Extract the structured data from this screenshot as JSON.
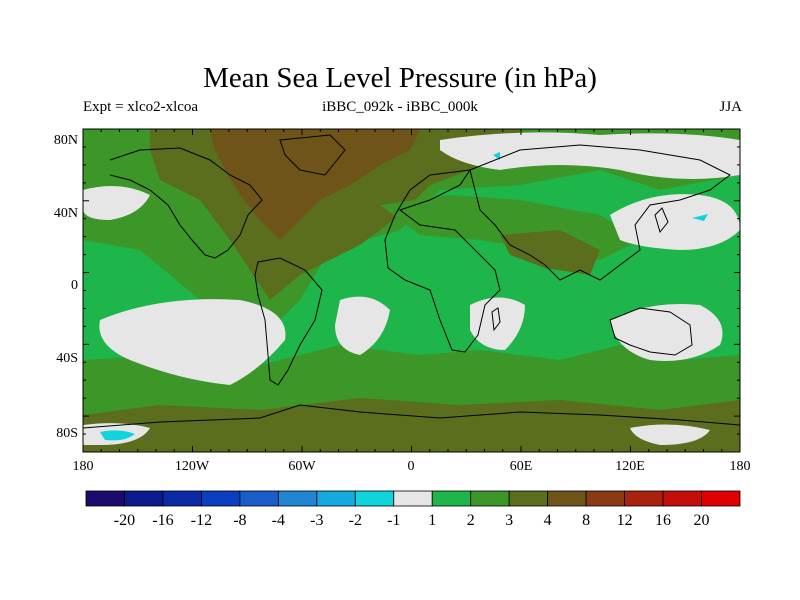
{
  "title": "Mean Sea Level Pressure (in hPa)",
  "subtitle_left": "Expt = xlco2-xlcoa",
  "subtitle_center": "iBBC_092k - iBBC_000k",
  "subtitle_right": "JJA",
  "lat_labels": [
    "80N",
    "40N",
    "0",
    "40S",
    "80S"
  ],
  "lon_labels": [
    "180",
    "120W",
    "60W",
    "0",
    "60E",
    "120E",
    "180"
  ],
  "colorbar": {
    "labels": [
      "-20",
      "-16",
      "-12",
      "-8",
      "-4",
      "-3",
      "-2",
      "-1",
      "1",
      "2",
      "3",
      "4",
      "8",
      "12",
      "16",
      "20"
    ],
    "colors": [
      "#1a0b6e",
      "#0b1a8c",
      "#0a2aa6",
      "#0c3fbf",
      "#1a5cc9",
      "#2086d4",
      "#14a9e0",
      "#10d4dc",
      "#e6e6e6",
      "#1eb64a",
      "#3c9628",
      "#5a6e1e",
      "#6e5418",
      "#8c3a14",
      "#a8220e",
      "#c40e0a",
      "#e00000"
    ]
  },
  "map_colors": {
    "background": "#1eb64a",
    "brown_mid": "#5a6e1e",
    "brown_dark": "#6e5418",
    "olive": "#3c9628",
    "white": "#e6e6e6",
    "cyan": "#10d4dc"
  }
}
